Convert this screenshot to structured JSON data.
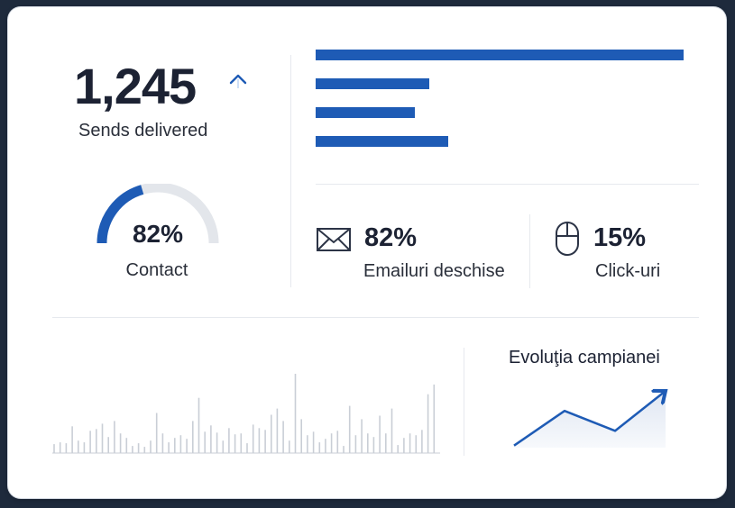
{
  "summary": {
    "sends_value": "1,245",
    "sends_label": "Sends delivered",
    "trend": "up"
  },
  "bar_chart": {
    "type": "bar",
    "orientation": "horizontal",
    "categories": [
      "",
      "",
      "",
      ""
    ],
    "values": [
      100,
      31,
      27,
      36
    ],
    "xlim": [
      0,
      100
    ],
    "color": "#1e5bb5"
  },
  "gauge": {
    "value": 82,
    "value_text": "82%",
    "label": "Contact",
    "fill_color": "#1e5bb5",
    "track_color": "#e3e6eb"
  },
  "stats": {
    "opens": {
      "value": "82%",
      "label": "Emailuri deschise",
      "icon": "envelope-icon"
    },
    "clicks": {
      "value": "15%",
      "label": "Click-uri",
      "icon": "mouse-icon"
    }
  },
  "sparkline": {
    "type": "bar",
    "values": [
      10,
      12,
      11,
      30,
      14,
      12,
      25,
      27,
      33,
      18,
      36,
      22,
      17,
      8,
      11,
      7,
      14,
      45,
      22,
      12,
      17,
      20,
      16,
      36,
      62,
      24,
      31,
      23,
      14,
      28,
      21,
      22,
      11,
      32,
      28,
      26,
      43,
      50,
      36,
      14,
      89,
      38,
      20,
      24,
      12,
      16,
      22,
      25,
      8,
      53,
      20,
      38,
      22,
      18,
      42,
      22,
      50,
      9,
      17,
      22,
      20,
      26,
      66,
      77
    ]
  },
  "evolution": {
    "title": "Evoluţia campianei",
    "chart_data": {
      "type": "line",
      "x": [
        0,
        1,
        2,
        3
      ],
      "values": [
        2,
        35,
        16,
        54
      ],
      "ylim": [
        0,
        60
      ],
      "color": "#1e5bb5"
    }
  }
}
